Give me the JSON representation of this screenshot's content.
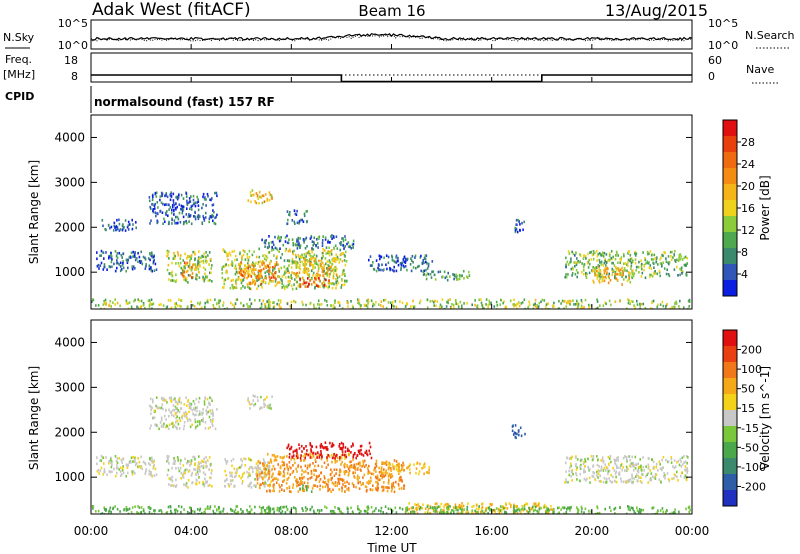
{
  "header": {
    "station": "Adak West (fitACF)",
    "beam": "Beam 16",
    "date": "13/Aug/2015"
  },
  "panels": {
    "nsky_label": "N.Sky",
    "nsky_ticks": [
      "10^5",
      "10^0"
    ],
    "nsearch_label": "N.Search",
    "nsearch_ticks": [
      "10^5",
      "10^0"
    ],
    "freq_label_line1": "Freq.",
    "freq_label_line2": "[MHz]",
    "freq_ticks": [
      "18",
      "8"
    ],
    "nave_label": "Nave",
    "nave_ticks": [
      "60",
      "0"
    ],
    "cpid_label": "CPID",
    "cpid_text": "normalsound (fast) 157 RF"
  },
  "axes": {
    "x_label": "Time UT",
    "x_ticks": [
      "00:00",
      "04:00",
      "08:00",
      "12:00",
      "16:00",
      "20:00",
      "00:00"
    ],
    "y_label": "Slant Range [km]",
    "y_ticks": [
      "1000",
      "2000",
      "3000",
      "4000"
    ]
  },
  "colorbars": {
    "power": {
      "label": "Power [dB]",
      "ticks": [
        "4",
        "8",
        "12",
        "16",
        "20",
        "24",
        "28"
      ],
      "colors": [
        "#0a1fe0",
        "#2f56b8",
        "#3c8a6e",
        "#4ea84e",
        "#8ccc3a",
        "#f0d21c",
        "#f5b418",
        "#f58c12",
        "#f06a10",
        "#e8400a",
        "#e01010"
      ]
    },
    "velocity": {
      "label": "Velocity [m s^-1]",
      "ticks": [
        "200",
        "100",
        "50",
        "15",
        "-15",
        "-50",
        "-100",
        "-200"
      ],
      "colors": [
        "#2030c0",
        "#2f5ea8",
        "#3c8a6e",
        "#4aa84a",
        "#78c83a",
        "#c8c8c8",
        "#f5d21a",
        "#f5a818",
        "#f07818",
        "#e84010",
        "#e01010"
      ]
    }
  },
  "chart_data": {
    "type": "heatmap",
    "x_unit": "hours UT",
    "xlim": [
      0,
      24
    ],
    "ylim": [
      180,
      4500
    ],
    "frequency_mhz": [
      [
        0,
        12.5
      ],
      [
        10,
        12.5
      ],
      [
        10,
        10.2
      ],
      [
        18,
        10.2
      ],
      [
        18,
        12.5
      ],
      [
        24,
        12.5
      ]
    ],
    "power_regions": [
      {
        "t0": 0.2,
        "t1": 2.6,
        "r0": 1050,
        "r1": 1500,
        "dB": 6
      },
      {
        "t0": 3.0,
        "t1": 4.8,
        "r0": 800,
        "r1": 1500,
        "dB": 14
      },
      {
        "t0": 3.6,
        "t1": 4.2,
        "r0": 900,
        "r1": 1250,
        "dB": 22
      },
      {
        "t0": 5.2,
        "t1": 10.2,
        "r0": 650,
        "r1": 1550,
        "dB": 14
      },
      {
        "t0": 5.8,
        "t1": 7.5,
        "r0": 750,
        "r1": 1250,
        "dB": 22
      },
      {
        "t0": 8.0,
        "t1": 9.8,
        "r0": 950,
        "r1": 1350,
        "dB": 18
      },
      {
        "t0": 8.3,
        "t1": 9.5,
        "r0": 700,
        "r1": 900,
        "dB": 26
      },
      {
        "t0": 6.8,
        "t1": 10.5,
        "r0": 1550,
        "r1": 1850,
        "dB": 8
      },
      {
        "t0": 11.0,
        "t1": 13.6,
        "r0": 1050,
        "r1": 1400,
        "dB": 6
      },
      {
        "t0": 13.2,
        "t1": 15.2,
        "r0": 850,
        "r1": 1050,
        "dB": 10
      },
      {
        "t0": 2.3,
        "t1": 5.0,
        "r0": 2100,
        "r1": 2800,
        "dB": 6
      },
      {
        "t0": 6.2,
        "t1": 7.2,
        "r0": 2550,
        "r1": 2850,
        "dB": 18
      },
      {
        "t0": 7.8,
        "t1": 8.6,
        "r0": 2100,
        "r1": 2400,
        "dB": 6
      },
      {
        "t0": 0.4,
        "t1": 1.8,
        "r0": 1950,
        "r1": 2200,
        "dB": 5
      },
      {
        "t0": 18.9,
        "t1": 23.8,
        "r0": 900,
        "r1": 1500,
        "dB": 12
      },
      {
        "t0": 20.0,
        "t1": 21.6,
        "r0": 750,
        "r1": 1150,
        "dB": 18
      },
      {
        "t0": 16.8,
        "t1": 17.3,
        "r0": 1900,
        "r1": 2200,
        "dB": 6
      },
      {
        "t0": 0.0,
        "t1": 24.0,
        "r0": 180,
        "r1": 420,
        "dB": 14
      }
    ],
    "velocity_regions": [
      {
        "t0": 0.2,
        "t1": 2.6,
        "r0": 1050,
        "r1": 1500,
        "v": 0
      },
      {
        "t0": 3.0,
        "t1": 4.8,
        "r0": 800,
        "r1": 1500,
        "v": 0
      },
      {
        "t0": 5.3,
        "t1": 7.2,
        "r0": 800,
        "r1": 1450,
        "v": -5
      },
      {
        "t0": 6.6,
        "t1": 12.5,
        "r0": 700,
        "r1": 1400,
        "v": -80
      },
      {
        "t0": 7.0,
        "t1": 10.5,
        "r0": 1400,
        "r1": 1550,
        "v": -50
      },
      {
        "t0": 7.8,
        "t1": 11.2,
        "r0": 1450,
        "r1": 1800,
        "v": -250
      },
      {
        "t0": 8.3,
        "t1": 8.8,
        "r0": 700,
        "r1": 850,
        "v": 60
      },
      {
        "t0": 11.5,
        "t1": 13.5,
        "r0": 1100,
        "r1": 1350,
        "v": -40
      },
      {
        "t0": 2.3,
        "t1": 5.0,
        "r0": 2100,
        "r1": 2800,
        "v": 0
      },
      {
        "t0": 6.2,
        "t1": 7.2,
        "r0": 2550,
        "r1": 2850,
        "v": 0
      },
      {
        "t0": 16.8,
        "t1": 17.3,
        "r0": 1900,
        "r1": 2200,
        "v": 150
      },
      {
        "t0": 18.9,
        "t1": 23.8,
        "r0": 900,
        "r1": 1500,
        "v": 0
      },
      {
        "t0": 12.5,
        "t1": 18.5,
        "r0": 180,
        "r1": 450,
        "v": -40
      },
      {
        "t0": 0.0,
        "t1": 24.0,
        "r0": 180,
        "r1": 380,
        "v": 40
      }
    ]
  }
}
